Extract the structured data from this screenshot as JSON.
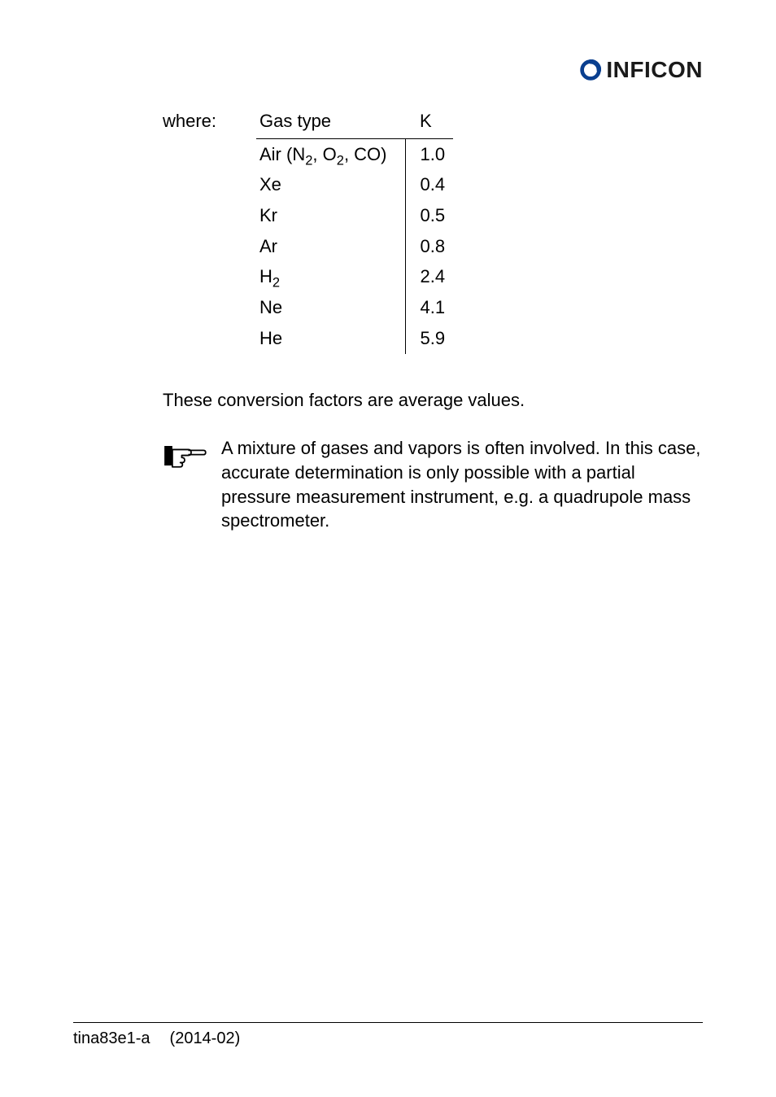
{
  "logo": {
    "text": "INFICON",
    "mark_color": "#0a3f8f"
  },
  "table": {
    "where_label": "where:",
    "headers": {
      "gas": "Gas type",
      "k": "K"
    },
    "rows": [
      {
        "gas_html": "Air (N<span class='sub'>2</span>, O<span class='sub'>2</span>, CO)",
        "k": "1.0"
      },
      {
        "gas_html": "Xe",
        "k": "0.4"
      },
      {
        "gas_html": "Kr",
        "k": "0.5"
      },
      {
        "gas_html": "Ar",
        "k": "0.8"
      },
      {
        "gas_html": "H<span class='sub'>2</span>",
        "k": "2.4"
      },
      {
        "gas_html": "Ne",
        "k": "4.1"
      },
      {
        "gas_html": "He",
        "k": "5.9"
      }
    ],
    "header_fontsize": 22,
    "cell_fontsize": 22,
    "border_color": "#000000"
  },
  "paragraphs": {
    "avg_note": "These conversion factors are average values.",
    "mixture_note": "A mixture of gases and vapors is often involved. In this case, accurate determination is only possible with a partial pressure measurement instrument, e.g. a quadrupole mass spectrometer."
  },
  "footer": {
    "doc_id": "tina83e1-a",
    "date": "(2014-02)"
  },
  "colors": {
    "text": "#000000",
    "background": "#ffffff",
    "footer_rule": "#000000"
  },
  "typography": {
    "body_fontsize": 22,
    "footer_fontsize": 20,
    "logo_fontsize": 28
  }
}
